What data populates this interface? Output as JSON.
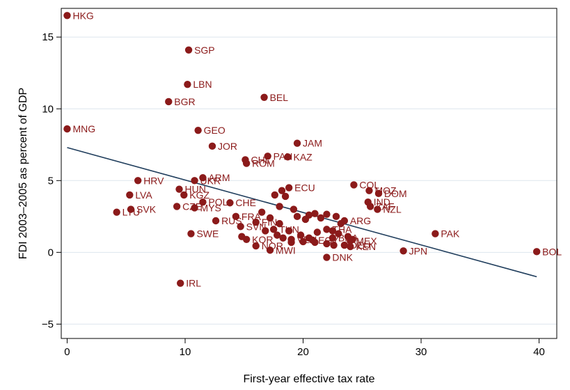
{
  "chart_data": {
    "type": "scatter",
    "title": "",
    "xlabel": "First-year effective tax rate",
    "ylabel": "FDI 2003–2005 as percent of GDP",
    "xlim": [
      -0.5,
      41.5
    ],
    "ylim": [
      -6,
      17
    ],
    "xticks": [
      0,
      10,
      20,
      30,
      40
    ],
    "yticks": [
      -5,
      0,
      5,
      10,
      15
    ],
    "grid": "horizontal",
    "legend": "none",
    "colors": {
      "marker": "#8b1a1a",
      "label": "#8b1a1a",
      "fit_line": "#1f3d5c",
      "grid": "#dde6ee"
    },
    "fit_line": {
      "x": [
        0,
        39.8
      ],
      "y": [
        7.3,
        -1.7
      ]
    },
    "points": [
      {
        "label": "HKG",
        "x": 0,
        "y": 16.5
      },
      {
        "label": "SGP",
        "x": 10.3,
        "y": 14.1
      },
      {
        "label": "LBN",
        "x": 10.2,
        "y": 11.7
      },
      {
        "label": "BEL",
        "x": 16.7,
        "y": 10.8
      },
      {
        "label": "BGR",
        "x": 8.6,
        "y": 10.5
      },
      {
        "label": "MNG",
        "x": 0,
        "y": 8.6
      },
      {
        "label": "GEO",
        "x": 11.1,
        "y": 8.5
      },
      {
        "label": "JAM",
        "x": 19.5,
        "y": 7.6
      },
      {
        "label": "JOR",
        "x": 12.3,
        "y": 7.4
      },
      {
        "label": "PAN",
        "x": 17,
        "y": 6.7
      },
      {
        "label": "KAZ",
        "x": 18.7,
        "y": 6.65
      },
      {
        "label": "CHL",
        "x": 15.1,
        "y": 6.45
      },
      {
        "label": "ROM",
        "x": 15.2,
        "y": 6.2
      },
      {
        "label": "ARM",
        "x": 11.5,
        "y": 5.2
      },
      {
        "label": "HRV",
        "x": 6.0,
        "y": 5.0
      },
      {
        "label": "UKR",
        "x": 10.8,
        "y": 5.0
      },
      {
        "label": "COL",
        "x": 24.3,
        "y": 4.7
      },
      {
        "label": "ECU",
        "x": 18.8,
        "y": 4.5
      },
      {
        "label": "HUN",
        "x": 9.5,
        "y": 4.4
      },
      {
        "label": "MOZ",
        "x": 25.6,
        "y": 4.3
      },
      {
        "label": "DOM",
        "x": 26.4,
        "y": 4.1
      },
      {
        "label": "LVA",
        "x": 5.3,
        "y": 4.0
      },
      {
        "label": "KGZ",
        "x": 9.9,
        "y": 4.0
      },
      {
        "label": "POL",
        "x": 11.5,
        "y": 3.5
      },
      {
        "label": "CHE",
        "x": 13.8,
        "y": 3.45
      },
      {
        "label": "IND",
        "x": 25.5,
        "y": 3.5
      },
      {
        "label": "ZAF",
        "x": 25.7,
        "y": 3.2
      },
      {
        "label": "SVK",
        "x": 5.4,
        "y": 3.0
      },
      {
        "label": "CZE",
        "x": 9.3,
        "y": 3.2
      },
      {
        "label": "MYS",
        "x": 10.8,
        "y": 3.1
      },
      {
        "label": "NZL",
        "x": 26.3,
        "y": 3.0
      },
      {
        "label": "LTU",
        "x": 4.2,
        "y": 2.8
      },
      {
        "label": "ARG",
        "x": 23.5,
        "y": 2.2
      },
      {
        "label": "RUS",
        "x": 12.6,
        "y": 2.2
      },
      {
        "label": "FRA",
        "x": 14.3,
        "y": 2.5
      },
      {
        "label": "SWE",
        "x": 10.5,
        "y": 1.3
      },
      {
        "label": "SVN",
        "x": 14.7,
        "y": 1.8
      },
      {
        "label": "FIN",
        "x": 16.0,
        "y": 2.1
      },
      {
        "label": "TUN",
        "x": 17.5,
        "y": 1.6
      },
      {
        "label": "THA",
        "x": 22.0,
        "y": 1.6
      },
      {
        "label": "PAK",
        "x": 31.2,
        "y": 1.3
      },
      {
        "label": "KOR",
        "x": 15.2,
        "y": 0.9
      },
      {
        "label": "VEN",
        "x": 19.0,
        "y": 0.9
      },
      {
        "label": "EGY",
        "x": 20.8,
        "y": 0.85
      },
      {
        "label": "BRA",
        "x": 22.5,
        "y": 1.0
      },
      {
        "label": "MEX",
        "x": 24.0,
        "y": 0.8
      },
      {
        "label": "NOR",
        "x": 16.0,
        "y": 0.45
      },
      {
        "label": "MWI",
        "x": 17.2,
        "y": 0.15
      },
      {
        "label": "DEU",
        "x": 23.5,
        "y": 0.5
      },
      {
        "label": "KEN",
        "x": 24.0,
        "y": 0.4
      },
      {
        "label": "JPN",
        "x": 28.5,
        "y": 0.1
      },
      {
        "label": "BOL",
        "x": 39.8,
        "y": 0.05
      },
      {
        "label": "DNK",
        "x": 22.0,
        "y": -0.35
      },
      {
        "label": "IRL",
        "x": 9.6,
        "y": -2.15
      }
    ],
    "extra_points": [
      {
        "x": 17.6,
        "y": 4.0
      },
      {
        "x": 18.2,
        "y": 4.3
      },
      {
        "x": 18.5,
        "y": 3.9
      },
      {
        "x": 18.0,
        "y": 3.2
      },
      {
        "x": 19.2,
        "y": 3.0
      },
      {
        "x": 19.5,
        "y": 2.5
      },
      {
        "x": 20.2,
        "y": 2.3
      },
      {
        "x": 20.5,
        "y": 2.6
      },
      {
        "x": 21.0,
        "y": 2.7
      },
      {
        "x": 21.5,
        "y": 2.4
      },
      {
        "x": 22.0,
        "y": 2.65
      },
      {
        "x": 22.8,
        "y": 2.5
      },
      {
        "x": 23.2,
        "y": 2.0
      },
      {
        "x": 16.5,
        "y": 2.8
      },
      {
        "x": 17.2,
        "y": 2.4
      },
      {
        "x": 18.0,
        "y": 2.0
      },
      {
        "x": 18.8,
        "y": 1.5
      },
      {
        "x": 19.8,
        "y": 1.2
      },
      {
        "x": 20.5,
        "y": 1.0
      },
      {
        "x": 21.2,
        "y": 1.4
      },
      {
        "x": 22.5,
        "y": 1.5
      },
      {
        "x": 23.0,
        "y": 1.3
      },
      {
        "x": 23.8,
        "y": 1.1
      },
      {
        "x": 24.2,
        "y": 0.9
      },
      {
        "x": 19.0,
        "y": 0.7
      },
      {
        "x": 20.0,
        "y": 0.75
      },
      {
        "x": 21.0,
        "y": 0.7
      },
      {
        "x": 22.0,
        "y": 0.6
      },
      {
        "x": 22.6,
        "y": 0.5
      },
      {
        "x": 14.8,
        "y": 1.1
      },
      {
        "x": 16.8,
        "y": 1.5
      },
      {
        "x": 17.8,
        "y": 1.2
      },
      {
        "x": 18.3,
        "y": 1.0
      }
    ]
  }
}
